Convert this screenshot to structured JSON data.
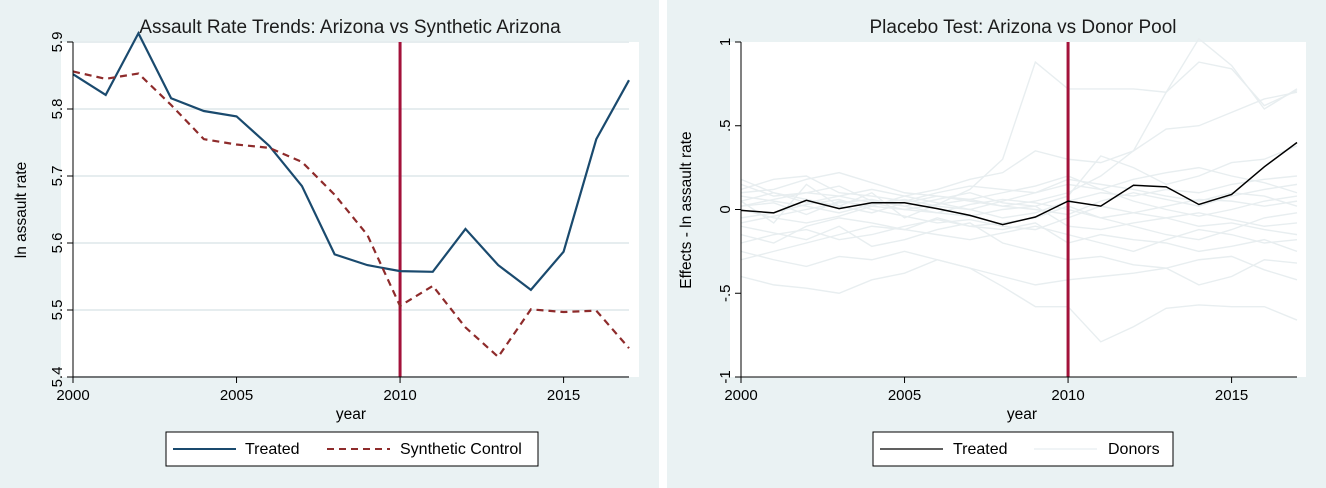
{
  "chart_data": [
    {
      "type": "line",
      "title": "Assault Rate Trends: Arizona vs Synthetic Arizona",
      "xlabel": "year",
      "ylabel": "ln assault rate",
      "x": [
        2000,
        2001,
        2002,
        2003,
        2004,
        2005,
        2006,
        2007,
        2008,
        2009,
        2010,
        2011,
        2012,
        2013,
        2014,
        2015,
        2016,
        2017
      ],
      "xlim": [
        2000,
        2017
      ],
      "ylim": [
        5.4,
        5.9
      ],
      "xticks": [
        "2000",
        "2005",
        "2010",
        "2015"
      ],
      "xtick_values": [
        2000,
        2005,
        2010,
        2015
      ],
      "yticks": [
        "5.4",
        "5.5",
        "5.6",
        "5.7",
        "5.8",
        "5.9"
      ],
      "ytick_values": [
        5.4,
        5.5,
        5.6,
        5.7,
        5.8,
        5.9
      ],
      "grid": true,
      "vline": 2010,
      "series": [
        {
          "name": "Treated",
          "color": "#1a4a6e",
          "dash": "solid",
          "values": [
            5.852,
            5.821,
            5.913,
            5.816,
            5.797,
            5.789,
            5.745,
            5.685,
            5.583,
            5.567,
            5.558,
            5.557,
            5.621,
            5.567,
            5.53,
            5.587,
            5.755,
            5.843
          ]
        },
        {
          "name": "Synthetic Control",
          "color": "#8e2b2b",
          "dash": "dashed",
          "values": [
            5.856,
            5.845,
            5.853,
            5.806,
            5.755,
            5.747,
            5.742,
            5.721,
            5.672,
            5.612,
            5.506,
            5.536,
            5.474,
            5.43,
            5.501,
            5.497,
            5.499,
            5.443
          ]
        }
      ],
      "legend": {
        "position": "bottom",
        "entries": [
          "Treated",
          "Synthetic Control"
        ]
      }
    },
    {
      "type": "line",
      "title": "Placebo Test: Arizona vs Donor Pool",
      "xlabel": "year",
      "ylabel": "Effects - ln assault rate",
      "x": [
        2000,
        2001,
        2002,
        2003,
        2004,
        2005,
        2006,
        2007,
        2008,
        2009,
        2010,
        2011,
        2012,
        2013,
        2014,
        2015,
        2016,
        2017
      ],
      "xlim": [
        2000,
        2017
      ],
      "ylim": [
        -1.0,
        1.0
      ],
      "xticks": [
        "2000",
        "2005",
        "2010",
        "2015"
      ],
      "xtick_values": [
        2000,
        2005,
        2010,
        2015
      ],
      "yticks": [
        "-1",
        "-.5",
        "0",
        ".5",
        "1"
      ],
      "ytick_values": [
        -1,
        -0.5,
        0,
        0.5,
        1
      ],
      "grid": false,
      "vline": 2010,
      "series": [
        {
          "name": "Treated",
          "color": "#000000",
          "values": [
            -0.005,
            -0.02,
            0.055,
            0.005,
            0.04,
            0.04,
            0.005,
            -0.035,
            -0.09,
            -0.045,
            0.05,
            0.02,
            0.145,
            0.135,
            0.03,
            0.09,
            0.255,
            0.4
          ]
        }
      ],
      "donors": [
        {
          "color": "#e8eef0",
          "values": [
            0.05,
            -0.08,
            0.15,
            0.02,
            0.1,
            -0.05,
            0.03,
            0.12,
            0.3,
            0.88,
            0.72,
            0.72,
            0.72,
            0.7,
            0.88,
            0.84,
            0.62,
            0.71
          ]
        },
        {
          "color": "#e8eef0",
          "values": [
            0.02,
            0.04,
            -0.03,
            0.05,
            0.02,
            0.08,
            0.12,
            0.18,
            0.22,
            0.35,
            0.3,
            0.28,
            0.35,
            0.7,
            1.02,
            0.86,
            0.6,
            0.72
          ]
        },
        {
          "color": "#e8eef0",
          "values": [
            -0.4,
            -0.45,
            -0.47,
            -0.5,
            -0.42,
            -0.38,
            -0.3,
            -0.35,
            -0.46,
            -0.58,
            -0.58,
            -0.79,
            -0.7,
            -0.59,
            -0.57,
            -0.58,
            -0.58,
            -0.66
          ]
        },
        {
          "color": "#e8eef0",
          "values": [
            -0.25,
            -0.3,
            -0.34,
            -0.28,
            -0.3,
            -0.25,
            -0.3,
            -0.35,
            -0.4,
            -0.45,
            -0.42,
            -0.4,
            -0.38,
            -0.35,
            -0.45,
            -0.4,
            -0.3,
            -0.32
          ]
        },
        {
          "color": "#e8eef0",
          "values": [
            0.1,
            0.12,
            0.18,
            0.22,
            0.16,
            0.1,
            0.08,
            0.05,
            0.02,
            0.05,
            0.1,
            0.2,
            0.35,
            0.48,
            0.5,
            0.58,
            0.66,
            0.7
          ]
        },
        {
          "color": "#e8eef0",
          "values": [
            -0.1,
            -0.14,
            -0.18,
            -0.1,
            -0.22,
            -0.18,
            -0.12,
            -0.08,
            -0.2,
            -0.25,
            -0.3,
            -0.28,
            -0.33,
            -0.35,
            -0.3,
            -0.28,
            -0.36,
            -0.42
          ]
        },
        {
          "color": "#e8eef0",
          "values": [
            0.15,
            0.08,
            0.1,
            0.14,
            0.05,
            0.02,
            0.06,
            0.1,
            0.04,
            0.02,
            0.08,
            0.32,
            0.25,
            0.15,
            0.2,
            0.28,
            0.3,
            0.38
          ]
        },
        {
          "color": "#e8eef0",
          "values": [
            -0.3,
            -0.25,
            -0.2,
            -0.15,
            -0.1,
            -0.12,
            -0.05,
            -0.1,
            -0.12,
            -0.08,
            -0.2,
            -0.15,
            -0.18,
            -0.2,
            -0.25,
            -0.22,
            -0.18,
            -0.25
          ]
        },
        {
          "color": "#e8eef0",
          "values": [
            0.08,
            0.05,
            0.02,
            -0.02,
            0.03,
            0.06,
            0.02,
            0.0,
            -0.05,
            -0.02,
            0.05,
            0.1,
            0.08,
            0.12,
            0.1,
            0.15,
            0.18,
            0.2
          ]
        },
        {
          "color": "#e8eef0",
          "values": [
            -0.05,
            -0.02,
            0.03,
            0.06,
            0.0,
            -0.04,
            -0.08,
            -0.06,
            -0.1,
            -0.12,
            -0.05,
            0.02,
            -0.02,
            -0.05,
            -0.1,
            -0.08,
            -0.12,
            -0.15
          ]
        },
        {
          "color": "#e8eef0",
          "values": [
            0.12,
            0.18,
            0.2,
            0.1,
            0.08,
            0.05,
            0.1,
            0.14,
            0.12,
            0.1,
            0.15,
            0.12,
            0.18,
            0.22,
            0.25,
            0.2,
            0.16,
            0.1
          ]
        },
        {
          "color": "#e8eef0",
          "values": [
            -0.15,
            -0.2,
            -0.1,
            -0.05,
            -0.08,
            -0.12,
            -0.15,
            -0.18,
            -0.14,
            -0.1,
            -0.15,
            -0.2,
            -0.25,
            -0.18,
            -0.12,
            -0.15,
            -0.2,
            -0.18
          ]
        },
        {
          "color": "#e8eef0",
          "values": [
            0.0,
            -0.05,
            -0.08,
            -0.04,
            0.02,
            0.0,
            -0.02,
            0.03,
            0.06,
            0.04,
            0.0,
            -0.05,
            -0.02,
            0.02,
            0.06,
            0.05,
            0.02,
            0.05
          ]
        },
        {
          "color": "#e8eef0",
          "values": [
            0.05,
            0.1,
            0.06,
            0.02,
            -0.02,
            0.04,
            0.08,
            0.06,
            0.02,
            0.0,
            -0.03,
            0.05,
            0.1,
            0.06,
            0.02,
            0.08,
            0.12,
            0.15
          ]
        },
        {
          "color": "#e8eef0",
          "values": [
            -0.08,
            -0.04,
            0.0,
            0.04,
            0.06,
            0.02,
            -0.02,
            -0.04,
            0.0,
            0.02,
            -0.1,
            -0.12,
            -0.08,
            -0.05,
            -0.02,
            -0.06,
            -0.1,
            -0.08
          ]
        },
        {
          "color": "#e8eef0",
          "values": [
            0.18,
            0.1,
            0.04,
            0.08,
            0.12,
            0.08,
            0.04,
            0.0,
            0.05,
            0.1,
            0.18,
            0.15,
            0.12,
            0.08,
            0.05,
            0.1,
            0.08,
            0.02
          ]
        },
        {
          "color": "#e8eef0",
          "values": [
            -0.2,
            -0.15,
            -0.12,
            -0.18,
            -0.15,
            -0.1,
            -0.06,
            -0.1,
            -0.08,
            -0.05,
            0.02,
            -0.05,
            -0.1,
            -0.15,
            -0.18,
            -0.12,
            -0.05,
            -0.02
          ]
        },
        {
          "color": "#e8eef0",
          "values": [
            0.02,
            0.06,
            0.1,
            0.08,
            0.04,
            0.0,
            0.03,
            0.06,
            0.1,
            0.14,
            0.2,
            0.12,
            0.05,
            0.0,
            -0.04,
            0.0,
            0.05,
            0.08
          ]
        }
      ],
      "legend": {
        "position": "bottom",
        "entries": [
          "Treated",
          "Donors"
        ]
      }
    }
  ]
}
